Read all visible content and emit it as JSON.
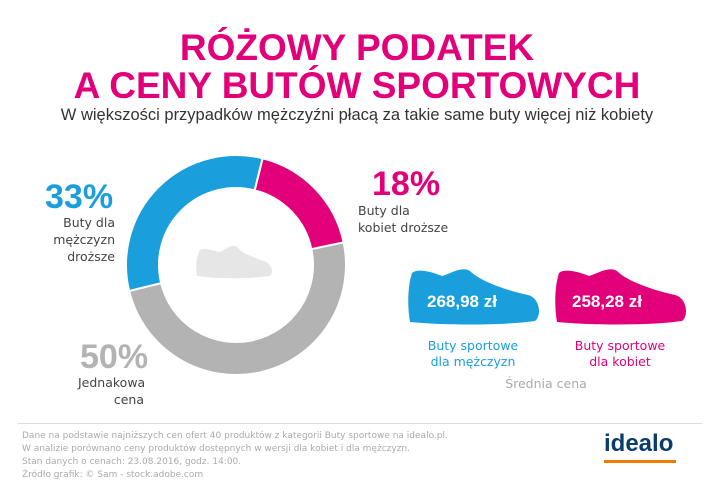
{
  "header": {
    "title_line1": "RÓŻOWY PODATEK",
    "title_line2": "A CENY BUTÓW SPORTOWYCH",
    "subtitle": "W większości przypadków mężczyźni płacą za takie same buty więcej niż kobiety"
  },
  "chart_data": {
    "type": "pie",
    "donut": true,
    "center_icon": "shoe-icon",
    "slices": [
      {
        "label_value": "18%",
        "value": 18,
        "label": [
          "Buty dla",
          "kobiet droższe"
        ],
        "color": "#e2007a"
      },
      {
        "label_value": "50%",
        "value": 50,
        "label": [
          "Jednakowa",
          "cena"
        ],
        "color": "#b3b3b3"
      },
      {
        "label_value": "33%",
        "value": 33,
        "label": [
          "Buty dla",
          "mężczyzn",
          "droższe"
        ],
        "color": "#1a9fdc"
      }
    ]
  },
  "prices": {
    "men": {
      "price": "268,98 zł",
      "caption": [
        "Buty sportowe",
        "dla mężczyzn"
      ],
      "color": "#1a9fdc"
    },
    "women": {
      "price": "258,28 zł",
      "caption": [
        "Buty sportowe",
        "dla kobiet"
      ],
      "color": "#e2007a"
    },
    "caption": "Średnia cena"
  },
  "footer": {
    "lines": [
      "Dane na podstawie najniższych cen ofert 40 produktów z kategorii Buty sportowe na idealo.pl.",
      "W analizie porównano ceny produktów dostępnych w wersji dla kobiet i dla mężczyzn.",
      "Stan danych o cenach: 23.08.2016, godz. 14:00.",
      "Źródło grafik: © Sam - stock.adobe.com"
    ],
    "logo": "idealo",
    "logo_accent": "#f07c00"
  }
}
